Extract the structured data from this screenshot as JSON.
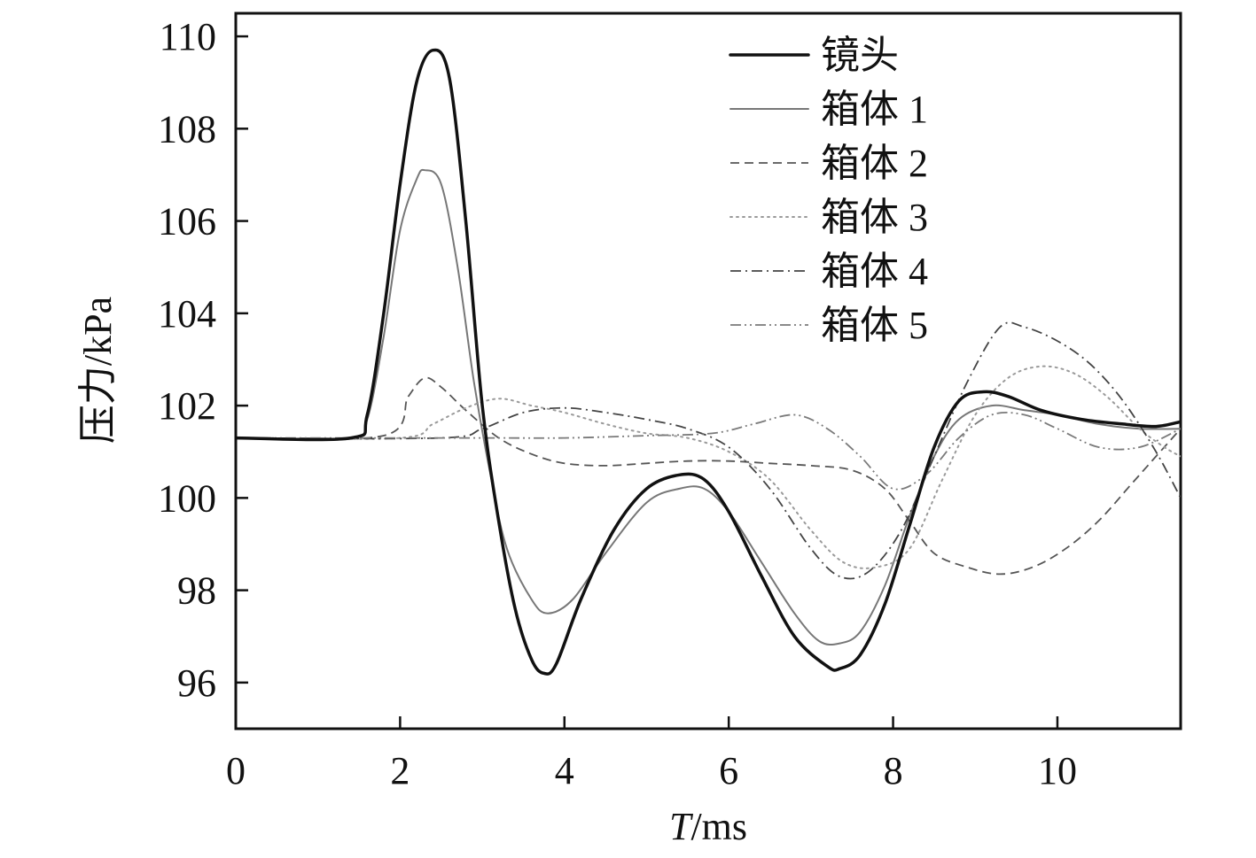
{
  "chart_data": {
    "type": "line",
    "title": "",
    "xlabel_var": "T",
    "xlabel_unit": "/ms",
    "ylabel": "压力/kPa",
    "xlim": [
      0,
      11.5
    ],
    "ylim": [
      95,
      110.5
    ],
    "xticks": [
      0,
      2,
      4,
      6,
      8,
      10
    ],
    "yticks": [
      96,
      98,
      100,
      102,
      104,
      106,
      108,
      110
    ],
    "grid": false,
    "legend_position": "top-right",
    "series": [
      {
        "name": "镜头",
        "color": "#111111",
        "style": "solid-thick",
        "points": [
          [
            0,
            101.3
          ],
          [
            1.4,
            101.3
          ],
          [
            1.6,
            101.8
          ],
          [
            1.8,
            104
          ],
          [
            2.0,
            106.8
          ],
          [
            2.2,
            109
          ],
          [
            2.4,
            109.7
          ],
          [
            2.6,
            109.1
          ],
          [
            2.8,
            106
          ],
          [
            3.0,
            102
          ],
          [
            3.2,
            99.5
          ],
          [
            3.4,
            97.6
          ],
          [
            3.6,
            96.5
          ],
          [
            3.75,
            96.2
          ],
          [
            3.9,
            96.4
          ],
          [
            4.2,
            97.8
          ],
          [
            4.6,
            99.3
          ],
          [
            5.0,
            100.2
          ],
          [
            5.4,
            100.5
          ],
          [
            5.7,
            100.4
          ],
          [
            6.0,
            99.7
          ],
          [
            6.4,
            98.3
          ],
          [
            6.8,
            97.0
          ],
          [
            7.2,
            96.35
          ],
          [
            7.35,
            96.3
          ],
          [
            7.6,
            96.6
          ],
          [
            7.9,
            97.7
          ],
          [
            8.2,
            99.4
          ],
          [
            8.5,
            101.1
          ],
          [
            8.8,
            102.1
          ],
          [
            9.1,
            102.3
          ],
          [
            9.4,
            102.2
          ],
          [
            9.8,
            101.9
          ],
          [
            10.3,
            101.7
          ],
          [
            10.8,
            101.6
          ],
          [
            11.2,
            101.55
          ],
          [
            11.5,
            101.65
          ]
        ]
      },
      {
        "name": "箱体 1",
        "color": "#777777",
        "style": "solid",
        "points": [
          [
            0,
            101.3
          ],
          [
            1.4,
            101.3
          ],
          [
            1.6,
            101.7
          ],
          [
            1.8,
            103.5
          ],
          [
            2.0,
            105.8
          ],
          [
            2.2,
            106.9
          ],
          [
            2.3,
            107.1
          ],
          [
            2.5,
            106.8
          ],
          [
            2.7,
            105
          ],
          [
            2.9,
            102.5
          ],
          [
            3.1,
            100.5
          ],
          [
            3.3,
            98.9
          ],
          [
            3.6,
            97.8
          ],
          [
            3.8,
            97.5
          ],
          [
            4.1,
            97.8
          ],
          [
            4.5,
            98.8
          ],
          [
            5.0,
            99.9
          ],
          [
            5.4,
            100.2
          ],
          [
            5.7,
            100.2
          ],
          [
            6.0,
            99.7
          ],
          [
            6.4,
            98.6
          ],
          [
            6.8,
            97.5
          ],
          [
            7.1,
            96.9
          ],
          [
            7.35,
            96.85
          ],
          [
            7.6,
            97.1
          ],
          [
            7.9,
            98.1
          ],
          [
            8.2,
            99.6
          ],
          [
            8.5,
            100.9
          ],
          [
            8.8,
            101.7
          ],
          [
            9.2,
            102.0
          ],
          [
            9.6,
            101.9
          ],
          [
            10.0,
            101.8
          ],
          [
            10.5,
            101.6
          ],
          [
            11.0,
            101.5
          ],
          [
            11.5,
            101.5
          ]
        ]
      },
      {
        "name": "箱体 2",
        "color": "#555555",
        "style": "dashed",
        "points": [
          [
            0,
            101.3
          ],
          [
            1.8,
            101.35
          ],
          [
            2.1,
            102.2
          ],
          [
            2.3,
            102.6
          ],
          [
            2.5,
            102.4
          ],
          [
            2.8,
            101.9
          ],
          [
            3.2,
            101.3
          ],
          [
            3.6,
            100.95
          ],
          [
            4.0,
            100.75
          ],
          [
            4.5,
            100.7
          ],
          [
            5.0,
            100.75
          ],
          [
            5.5,
            100.8
          ],
          [
            6.0,
            100.8
          ],
          [
            6.5,
            100.75
          ],
          [
            7.0,
            100.7
          ],
          [
            7.5,
            100.6
          ],
          [
            7.9,
            100.2
          ],
          [
            8.2,
            99.5
          ],
          [
            8.5,
            98.8
          ],
          [
            8.9,
            98.5
          ],
          [
            9.3,
            98.35
          ],
          [
            9.7,
            98.5
          ],
          [
            10.1,
            98.9
          ],
          [
            10.5,
            99.5
          ],
          [
            10.9,
            100.3
          ],
          [
            11.2,
            100.9
          ],
          [
            11.5,
            101.5
          ]
        ]
      },
      {
        "name": "箱体 3",
        "color": "#9a9a9a",
        "style": "dotted",
        "points": [
          [
            0,
            101.3
          ],
          [
            2.0,
            101.3
          ],
          [
            2.4,
            101.6
          ],
          [
            2.8,
            101.95
          ],
          [
            3.2,
            102.15
          ],
          [
            3.6,
            102.0
          ],
          [
            4.0,
            101.85
          ],
          [
            4.5,
            101.6
          ],
          [
            5.0,
            101.4
          ],
          [
            5.5,
            101.3
          ],
          [
            6.0,
            101.0
          ],
          [
            6.5,
            100.4
          ],
          [
            7.0,
            99.3
          ],
          [
            7.4,
            98.6
          ],
          [
            7.8,
            98.5
          ],
          [
            8.2,
            98.9
          ],
          [
            8.6,
            100.4
          ],
          [
            9.0,
            101.8
          ],
          [
            9.4,
            102.6
          ],
          [
            9.8,
            102.85
          ],
          [
            10.2,
            102.7
          ],
          [
            10.6,
            102.2
          ],
          [
            11.0,
            101.5
          ],
          [
            11.3,
            101.1
          ],
          [
            11.5,
            100.9
          ]
        ]
      },
      {
        "name": "箱体 4",
        "color": "#444444",
        "style": "dashdot",
        "points": [
          [
            0,
            101.3
          ],
          [
            2.5,
            101.3
          ],
          [
            3.0,
            101.5
          ],
          [
            3.5,
            101.85
          ],
          [
            4.0,
            101.95
          ],
          [
            4.5,
            101.85
          ],
          [
            5.0,
            101.7
          ],
          [
            5.5,
            101.5
          ],
          [
            6.0,
            101.1
          ],
          [
            6.5,
            100.2
          ],
          [
            7.0,
            98.9
          ],
          [
            7.35,
            98.3
          ],
          [
            7.7,
            98.4
          ],
          [
            8.1,
            99.3
          ],
          [
            8.5,
            100.9
          ],
          [
            8.9,
            102.5
          ],
          [
            9.3,
            103.7
          ],
          [
            9.6,
            103.7
          ],
          [
            10.0,
            103.4
          ],
          [
            10.4,
            102.9
          ],
          [
            10.8,
            102.1
          ],
          [
            11.2,
            101.0
          ],
          [
            11.5,
            100.0
          ]
        ]
      },
      {
        "name": "箱体 5",
        "color": "#7a7a7a",
        "style": "dashdotdot",
        "points": [
          [
            0,
            101.3
          ],
          [
            3.0,
            101.3
          ],
          [
            4.0,
            101.3
          ],
          [
            5.0,
            101.35
          ],
          [
            5.8,
            101.4
          ],
          [
            6.3,
            101.6
          ],
          [
            6.8,
            101.8
          ],
          [
            7.2,
            101.5
          ],
          [
            7.6,
            100.9
          ],
          [
            8.0,
            100.2
          ],
          [
            8.4,
            100.5
          ],
          [
            8.8,
            101.3
          ],
          [
            9.2,
            101.8
          ],
          [
            9.6,
            101.8
          ],
          [
            10.0,
            101.5
          ],
          [
            10.5,
            101.1
          ],
          [
            11.0,
            101.1
          ],
          [
            11.5,
            101.5
          ]
        ]
      }
    ]
  }
}
